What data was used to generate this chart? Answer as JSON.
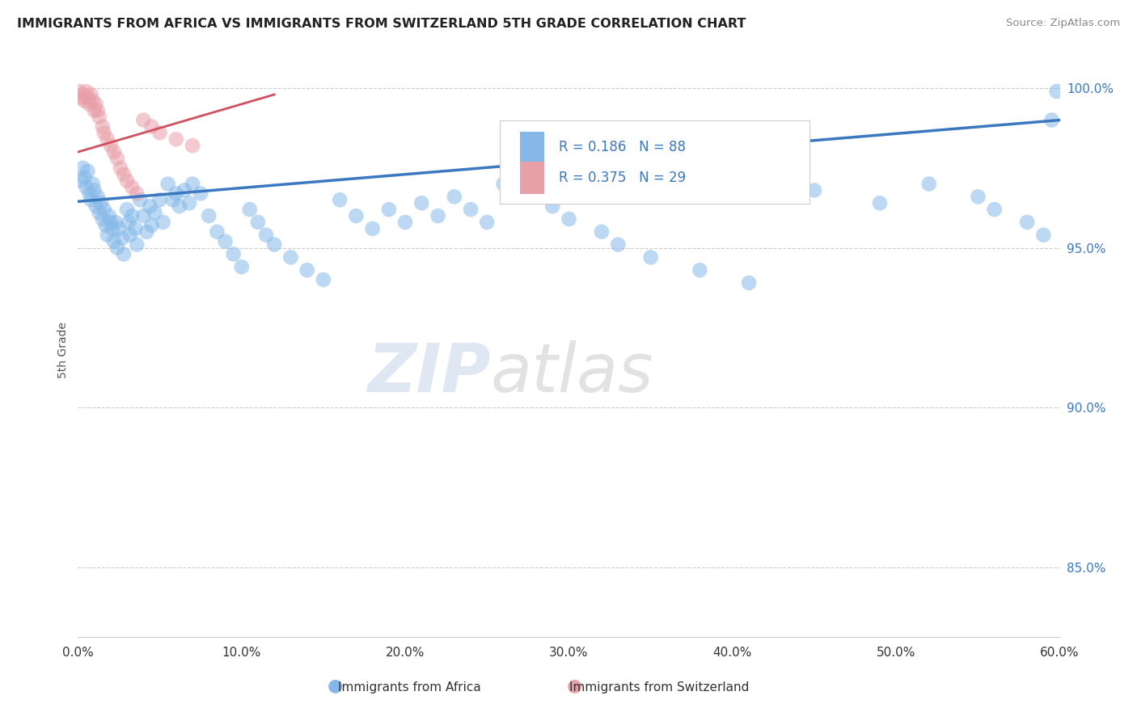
{
  "title": "IMMIGRANTS FROM AFRICA VS IMMIGRANTS FROM SWITZERLAND 5TH GRADE CORRELATION CHART",
  "source_text": "Source: ZipAtlas.com",
  "ylabel_left": "5th Grade",
  "xmin": 0.0,
  "xmax": 0.6,
  "ymin": 0.828,
  "ymax": 1.008,
  "ytick_labels": [
    "85.0%",
    "90.0%",
    "95.0%",
    "100.0%"
  ],
  "ytick_values": [
    0.85,
    0.9,
    0.95,
    1.0
  ],
  "xtick_labels": [
    "0.0%",
    "10.0%",
    "20.0%",
    "30.0%",
    "40.0%",
    "50.0%",
    "60.0%"
  ],
  "xtick_values": [
    0.0,
    0.1,
    0.2,
    0.3,
    0.4,
    0.5,
    0.6
  ],
  "legend_labels": [
    "Immigrants from Africa",
    "Immigrants from Switzerland"
  ],
  "legend_R": [
    0.186,
    0.375
  ],
  "legend_N": [
    88,
    29
  ],
  "blue_color": "#85b8e8",
  "pink_color": "#e8a0a8",
  "blue_line_color": "#3a78c0",
  "pink_line_color": "#d05060",
  "watermark": "ZIPatlas",
  "blue_trend_x0": 0.0,
  "blue_trend_y0": 0.9645,
  "blue_trend_x1": 0.6,
  "blue_trend_y1": 0.99,
  "pink_trend_x0": 0.0,
  "pink_trend_y0": 0.98,
  "pink_trend_x1": 0.12,
  "pink_trend_y1": 0.998,
  "blue_scatter_x": [
    0.002,
    0.003,
    0.004,
    0.005,
    0.006,
    0.007,
    0.008,
    0.009,
    0.01,
    0.011,
    0.012,
    0.013,
    0.014,
    0.015,
    0.016,
    0.017,
    0.018,
    0.019,
    0.02,
    0.021,
    0.022,
    0.023,
    0.024,
    0.025,
    0.027,
    0.028,
    0.03,
    0.031,
    0.032,
    0.033,
    0.035,
    0.036,
    0.038,
    0.04,
    0.042,
    0.044,
    0.045,
    0.047,
    0.05,
    0.052,
    0.055,
    0.058,
    0.06,
    0.062,
    0.065,
    0.068,
    0.07,
    0.075,
    0.08,
    0.085,
    0.09,
    0.095,
    0.1,
    0.105,
    0.11,
    0.115,
    0.12,
    0.13,
    0.14,
    0.15,
    0.16,
    0.17,
    0.18,
    0.19,
    0.2,
    0.21,
    0.22,
    0.23,
    0.24,
    0.25,
    0.26,
    0.27,
    0.29,
    0.3,
    0.32,
    0.33,
    0.35,
    0.38,
    0.41,
    0.45,
    0.49,
    0.52,
    0.55,
    0.56,
    0.58,
    0.59,
    0.595,
    0.598
  ],
  "blue_scatter_y": [
    0.971,
    0.975,
    0.972,
    0.969,
    0.974,
    0.967,
    0.965,
    0.97,
    0.968,
    0.963,
    0.966,
    0.961,
    0.964,
    0.959,
    0.962,
    0.957,
    0.954,
    0.96,
    0.958,
    0.956,
    0.952,
    0.958,
    0.95,
    0.956,
    0.953,
    0.948,
    0.962,
    0.958,
    0.954,
    0.96,
    0.956,
    0.951,
    0.965,
    0.96,
    0.955,
    0.963,
    0.957,
    0.961,
    0.965,
    0.958,
    0.97,
    0.965,
    0.967,
    0.963,
    0.968,
    0.964,
    0.97,
    0.967,
    0.96,
    0.955,
    0.952,
    0.948,
    0.944,
    0.962,
    0.958,
    0.954,
    0.951,
    0.947,
    0.943,
    0.94,
    0.965,
    0.96,
    0.956,
    0.962,
    0.958,
    0.964,
    0.96,
    0.966,
    0.962,
    0.958,
    0.97,
    0.967,
    0.963,
    0.959,
    0.955,
    0.951,
    0.947,
    0.943,
    0.939,
    0.968,
    0.964,
    0.97,
    0.966,
    0.962,
    0.958,
    0.954,
    0.99,
    0.999
  ],
  "pink_scatter_x": [
    0.001,
    0.002,
    0.003,
    0.004,
    0.005,
    0.006,
    0.007,
    0.008,
    0.009,
    0.01,
    0.011,
    0.012,
    0.013,
    0.015,
    0.016,
    0.018,
    0.02,
    0.022,
    0.024,
    0.026,
    0.028,
    0.03,
    0.033,
    0.036,
    0.04,
    0.045,
    0.05,
    0.06,
    0.07
  ],
  "pink_scatter_y": [
    0.999,
    0.997,
    0.998,
    0.996,
    0.999,
    0.997,
    0.995,
    0.998,
    0.996,
    0.993,
    0.995,
    0.993,
    0.991,
    0.988,
    0.986,
    0.984,
    0.982,
    0.98,
    0.978,
    0.975,
    0.973,
    0.971,
    0.969,
    0.967,
    0.99,
    0.988,
    0.986,
    0.984,
    0.982
  ]
}
